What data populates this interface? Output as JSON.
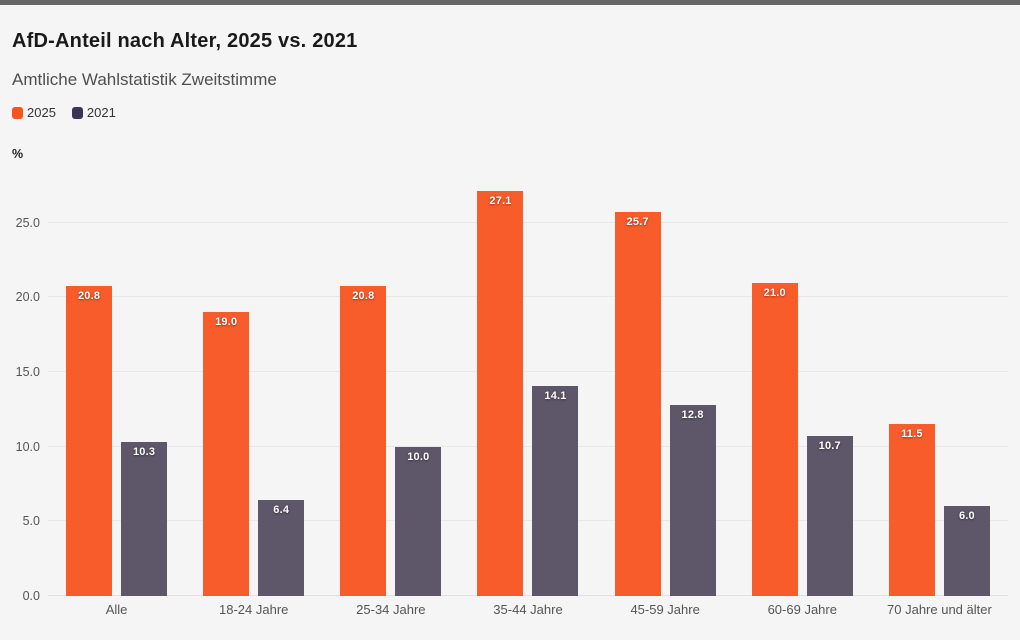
{
  "header": {
    "title": "AfD-Anteil nach Alter, 2025 vs. 2021",
    "subtitle": "Amtliche Wahlstatistik Zweitstimme"
  },
  "legend": {
    "items": [
      {
        "label": "2025",
        "color": "#F8521D"
      },
      {
        "label": "2021",
        "color": "#3C3356"
      }
    ]
  },
  "colors": {
    "background": "#f5f5f5",
    "top_accent_bar": "#666666",
    "bar_2025": "#F95C2B",
    "bar_2021": "#5E5769",
    "value_label_text": "#ffffff",
    "gridline": "#e8e8e8"
  },
  "chart_data": {
    "type": "bar",
    "title": "AfD-Anteil nach Alter, 2025 vs. 2021",
    "subtitle": "Amtliche Wahlstatistik Zweitstimme",
    "categories": [
      "Alle",
      "18-24 Jahre",
      "25-34 Jahre",
      "35-44 Jahre",
      "45-59 Jahre",
      "60-69 Jahre",
      "70 Jahre und älter"
    ],
    "series": [
      {
        "name": "2025",
        "color": "#F95C2B",
        "values": [
          20.8,
          19.0,
          20.8,
          27.1,
          25.7,
          21.0,
          11.5
        ]
      },
      {
        "name": "2021",
        "color": "#5E5769",
        "values": [
          10.3,
          6.4,
          10.0,
          14.1,
          12.8,
          10.7,
          6.0
        ]
      }
    ],
    "xlabel": "",
    "ylabel": "%",
    "y_ticks": [
      0,
      5,
      10,
      15,
      20,
      25
    ],
    "tick_decimals": 1,
    "ylim": [
      0,
      28
    ],
    "grid": true,
    "legend_position": "top-left",
    "value_labels": true,
    "value_label_decimals": 1
  }
}
